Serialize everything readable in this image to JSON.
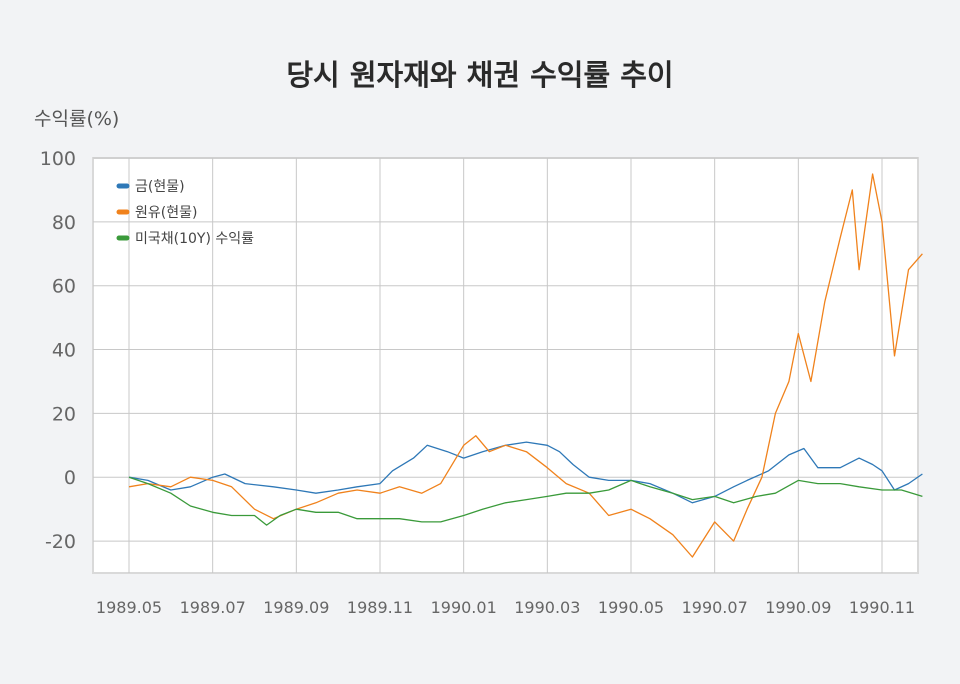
{
  "chart_data": {
    "type": "line",
    "title": "당시 원자재와 채권 수익률 추이",
    "ylabel": "수익률(%)",
    "xlabel": "",
    "ylim": [
      -30,
      100
    ],
    "yticks": [
      -20,
      0,
      20,
      40,
      60,
      80,
      100
    ],
    "x_ticks": [
      "1989.05",
      "1989.07",
      "1989.09",
      "1989.11",
      "1990.01",
      "1990.03",
      "1990.05",
      "1990.07",
      "1990.09",
      "1990.11"
    ],
    "x_range": [
      "1989.05",
      "1990.11"
    ],
    "grid": true,
    "legend_position": "top-left",
    "series": [
      {
        "name": "금(현물)",
        "color": "#2e78b7",
        "points": [
          [
            "1989-05-01",
            0
          ],
          [
            "1989-05-15",
            -1
          ],
          [
            "1989-06-01",
            -4
          ],
          [
            "1989-06-15",
            -3
          ],
          [
            "1989-07-01",
            0
          ],
          [
            "1989-07-10",
            1
          ],
          [
            "1989-07-25",
            -2
          ],
          [
            "1989-08-15",
            -3
          ],
          [
            "1989-09-01",
            -4
          ],
          [
            "1989-09-15",
            -5
          ],
          [
            "1989-10-01",
            -4
          ],
          [
            "1989-10-15",
            -3
          ],
          [
            "1989-11-01",
            -2
          ],
          [
            "1989-11-10",
            2
          ],
          [
            "1989-11-25",
            6
          ],
          [
            "1989-12-05",
            10
          ],
          [
            "1989-12-20",
            8
          ],
          [
            "1990-01-01",
            6
          ],
          [
            "1990-01-15",
            8
          ],
          [
            "1990-02-01",
            10
          ],
          [
            "1990-02-15",
            11
          ],
          [
            "1990-03-01",
            10
          ],
          [
            "1990-03-10",
            8
          ],
          [
            "1990-03-20",
            4
          ],
          [
            "1990-04-01",
            0
          ],
          [
            "1990-04-15",
            -1
          ],
          [
            "1990-05-01",
            -1
          ],
          [
            "1990-05-15",
            -2
          ],
          [
            "1990-06-01",
            -5
          ],
          [
            "1990-06-15",
            -8
          ],
          [
            "1990-07-01",
            -6
          ],
          [
            "1990-07-15",
            -3
          ],
          [
            "1990-07-25",
            -1
          ],
          [
            "1990-08-10",
            2
          ],
          [
            "1990-08-25",
            7
          ],
          [
            "1990-09-05",
            9
          ],
          [
            "1990-09-15",
            3
          ],
          [
            "1990-10-01",
            3
          ],
          [
            "1990-10-15",
            6
          ],
          [
            "1990-10-25",
            4
          ],
          [
            "1990-11-01",
            2
          ],
          [
            "1990-11-10",
            -4
          ],
          [
            "1990-11-20",
            -2
          ],
          [
            "1990-11-30",
            1
          ]
        ]
      },
      {
        "name": "원유(현물)",
        "color": "#f0821c",
        "points": [
          [
            "1989-05-01",
            -3
          ],
          [
            "1989-05-15",
            -2
          ],
          [
            "1989-06-01",
            -3
          ],
          [
            "1989-06-15",
            0
          ],
          [
            "1989-07-01",
            -1
          ],
          [
            "1989-07-15",
            -3
          ],
          [
            "1989-08-01",
            -10
          ],
          [
            "1989-08-15",
            -13
          ],
          [
            "1989-09-01",
            -10
          ],
          [
            "1989-09-15",
            -8
          ],
          [
            "1989-10-01",
            -5
          ],
          [
            "1989-10-15",
            -4
          ],
          [
            "1989-11-01",
            -5
          ],
          [
            "1989-11-15",
            -3
          ],
          [
            "1989-12-01",
            -5
          ],
          [
            "1989-12-15",
            -2
          ],
          [
            "1990-01-01",
            10
          ],
          [
            "1990-01-10",
            13
          ],
          [
            "1990-01-20",
            8
          ],
          [
            "1990-02-01",
            10
          ],
          [
            "1990-02-15",
            8
          ],
          [
            "1990-03-01",
            3
          ],
          [
            "1990-03-15",
            -2
          ],
          [
            "1990-04-01",
            -5
          ],
          [
            "1990-04-15",
            -12
          ],
          [
            "1990-05-01",
            -10
          ],
          [
            "1990-05-15",
            -13
          ],
          [
            "1990-06-01",
            -18
          ],
          [
            "1990-06-15",
            -25
          ],
          [
            "1990-07-01",
            -14
          ],
          [
            "1990-07-15",
            -20
          ],
          [
            "1990-07-25",
            -10
          ],
          [
            "1990-08-05",
            0
          ],
          [
            "1990-08-15",
            20
          ],
          [
            "1990-08-25",
            30
          ],
          [
            "1990-09-01",
            45
          ],
          [
            "1990-09-10",
            30
          ],
          [
            "1990-09-20",
            55
          ],
          [
            "1990-10-01",
            75
          ],
          [
            "1990-10-10",
            90
          ],
          [
            "1990-10-15",
            65
          ],
          [
            "1990-10-25",
            95
          ],
          [
            "1990-11-01",
            80
          ],
          [
            "1990-11-10",
            38
          ],
          [
            "1990-11-20",
            65
          ],
          [
            "1990-11-30",
            70
          ]
        ]
      },
      {
        "name": "미국채(10Y) 수익률",
        "color": "#3a9a3a",
        "points": [
          [
            "1989-05-01",
            0
          ],
          [
            "1989-05-15",
            -2
          ],
          [
            "1989-06-01",
            -5
          ],
          [
            "1989-06-15",
            -9
          ],
          [
            "1989-07-01",
            -11
          ],
          [
            "1989-07-15",
            -12
          ],
          [
            "1989-08-01",
            -12
          ],
          [
            "1989-08-10",
            -15
          ],
          [
            "1989-08-20",
            -12
          ],
          [
            "1989-09-01",
            -10
          ],
          [
            "1989-09-15",
            -11
          ],
          [
            "1989-10-01",
            -11
          ],
          [
            "1989-10-15",
            -13
          ],
          [
            "1989-11-01",
            -13
          ],
          [
            "1989-11-15",
            -13
          ],
          [
            "1989-12-01",
            -14
          ],
          [
            "1989-12-15",
            -14
          ],
          [
            "1990-01-01",
            -12
          ],
          [
            "1990-01-15",
            -10
          ],
          [
            "1990-02-01",
            -8
          ],
          [
            "1990-02-15",
            -7
          ],
          [
            "1990-03-01",
            -6
          ],
          [
            "1990-03-15",
            -5
          ],
          [
            "1990-04-01",
            -5
          ],
          [
            "1990-04-15",
            -4
          ],
          [
            "1990-05-01",
            -1
          ],
          [
            "1990-05-15",
            -3
          ],
          [
            "1990-06-01",
            -5
          ],
          [
            "1990-06-15",
            -7
          ],
          [
            "1990-07-01",
            -6
          ],
          [
            "1990-07-15",
            -8
          ],
          [
            "1990-08-01",
            -6
          ],
          [
            "1990-08-15",
            -5
          ],
          [
            "1990-09-01",
            -1
          ],
          [
            "1990-09-15",
            -2
          ],
          [
            "1990-10-01",
            -2
          ],
          [
            "1990-10-15",
            -3
          ],
          [
            "1990-11-01",
            -4
          ],
          [
            "1990-11-15",
            -4
          ],
          [
            "1990-11-30",
            -6
          ]
        ]
      }
    ]
  }
}
